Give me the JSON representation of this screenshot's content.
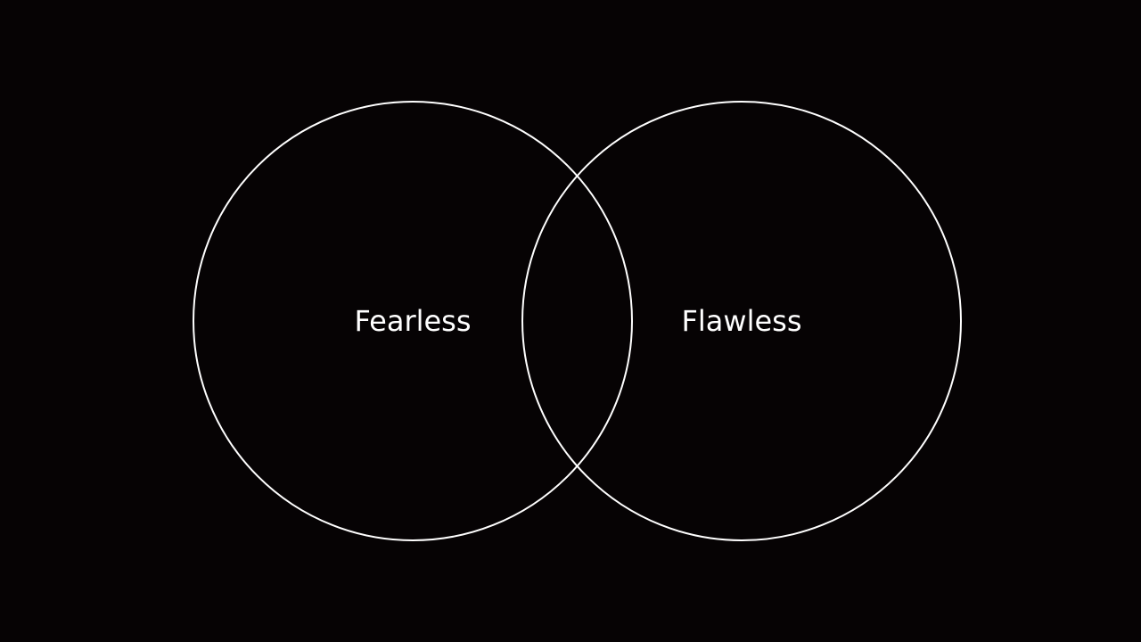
{
  "diagram": {
    "type": "venn",
    "sets": [
      {
        "id": "left",
        "label": "Fearless"
      },
      {
        "id": "right",
        "label": "Flawless"
      }
    ]
  },
  "colors": {
    "background": "#060304",
    "stroke": "#ffffff",
    "text": "#ffffff"
  }
}
